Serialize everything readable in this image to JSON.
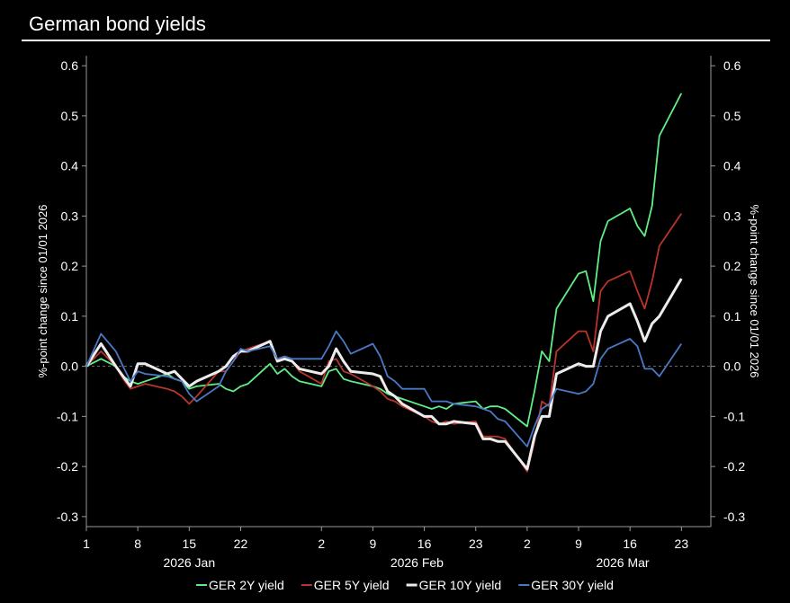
{
  "title": "German bond yields",
  "chart_data": {
    "type": "line",
    "ylabel_left": "%-point change since 01/01 2026",
    "ylabel_right": "%-point change since 01/01 2026",
    "ylim": [
      -0.32,
      0.62
    ],
    "yticks": [
      -0.3,
      -0.2,
      -0.1,
      0.0,
      0.1,
      0.2,
      0.3,
      0.4,
      0.5,
      0.6
    ],
    "ytick_labels": [
      "-0.3",
      "-0.2",
      "-0.1",
      "0.0",
      "0.1",
      "0.2",
      "0.3",
      "0.4",
      "0.5",
      "0.6"
    ],
    "xlim": [
      "2026-01-01",
      "2026-03-27"
    ],
    "xticks": [
      "2026-01-01",
      "2026-01-08",
      "2026-01-15",
      "2026-01-22",
      "2026-02-02",
      "2026-02-09",
      "2026-02-16",
      "2026-02-23",
      "2026-03-02",
      "2026-03-09",
      "2026-03-16",
      "2026-03-23"
    ],
    "xtick_labels": [
      "1",
      "8",
      "15",
      "22",
      "2",
      "9",
      "16",
      "23",
      "2",
      "9",
      "16",
      "23"
    ],
    "month_labels": [
      {
        "label": "2026 Jan",
        "date": "2026-01-15"
      },
      {
        "label": "2026 Feb",
        "date": "2026-02-15"
      },
      {
        "label": "2026 Mar",
        "date": "2026-03-15"
      }
    ],
    "zero_line": true,
    "grid": false,
    "legend_position": "bottom",
    "x": [
      "2026-01-01",
      "2026-01-03",
      "2026-01-05",
      "2026-01-06",
      "2026-01-07",
      "2026-01-08",
      "2026-01-09",
      "2026-01-12",
      "2026-01-13",
      "2026-01-14",
      "2026-01-15",
      "2026-01-16",
      "2026-01-19",
      "2026-01-20",
      "2026-01-21",
      "2026-01-22",
      "2026-01-23",
      "2026-01-26",
      "2026-01-27",
      "2026-01-28",
      "2026-01-29",
      "2026-01-30",
      "2026-02-02",
      "2026-02-03",
      "2026-02-04",
      "2026-02-05",
      "2026-02-06",
      "2026-02-09",
      "2026-02-10",
      "2026-02-11",
      "2026-02-12",
      "2026-02-13",
      "2026-02-16",
      "2026-02-17",
      "2026-02-18",
      "2026-02-19",
      "2026-02-20",
      "2026-02-23",
      "2026-02-24",
      "2026-02-25",
      "2026-02-26",
      "2026-02-27",
      "2026-03-02",
      "2026-03-03",
      "2026-03-04",
      "2026-03-05",
      "2026-03-06",
      "2026-03-09",
      "2026-03-10",
      "2026-03-11",
      "2026-03-12",
      "2026-03-13",
      "2026-03-16",
      "2026-03-17",
      "2026-03-18",
      "2026-03-19",
      "2026-03-20",
      "2026-03-23"
    ],
    "series": [
      {
        "name": "GER 2Y yield",
        "color": "#5fef84",
        "values": [
          0.0,
          0.015,
          0.0,
          -0.02,
          -0.03,
          -0.035,
          -0.03,
          -0.015,
          -0.025,
          -0.03,
          -0.045,
          -0.04,
          -0.035,
          -0.045,
          -0.05,
          -0.04,
          -0.035,
          0.005,
          -0.015,
          -0.005,
          -0.02,
          -0.03,
          -0.04,
          -0.01,
          -0.005,
          -0.025,
          -0.03,
          -0.04,
          -0.045,
          -0.055,
          -0.06,
          -0.065,
          -0.08,
          -0.085,
          -0.08,
          -0.085,
          -0.075,
          -0.07,
          -0.085,
          -0.08,
          -0.08,
          -0.085,
          -0.12,
          -0.05,
          0.03,
          0.01,
          0.115,
          0.185,
          0.19,
          0.13,
          0.25,
          0.29,
          0.315,
          0.28,
          0.26,
          0.32,
          0.46,
          0.545
        ]
      },
      {
        "name": "GER 5Y yield",
        "color": "#b9342a",
        "values": [
          0.0,
          0.03,
          0.0,
          -0.025,
          -0.045,
          -0.04,
          -0.035,
          -0.045,
          -0.05,
          -0.06,
          -0.075,
          -0.06,
          -0.01,
          -0.01,
          0.01,
          0.03,
          0.035,
          0.05,
          0.015,
          0.015,
          0.01,
          -0.01,
          -0.035,
          0.01,
          0.015,
          -0.01,
          -0.015,
          -0.04,
          -0.05,
          -0.065,
          -0.07,
          -0.08,
          -0.1,
          -0.11,
          -0.115,
          -0.11,
          -0.115,
          -0.11,
          -0.14,
          -0.14,
          -0.14,
          -0.145,
          -0.21,
          -0.15,
          -0.07,
          -0.08,
          0.03,
          0.07,
          0.07,
          0.03,
          0.15,
          0.17,
          0.19,
          0.15,
          0.115,
          0.17,
          0.24,
          0.305
        ]
      },
      {
        "name": "GER 10Y yield",
        "color": "#ececec",
        "values": [
          0.0,
          0.045,
          0.0,
          -0.02,
          -0.04,
          0.005,
          0.005,
          -0.015,
          -0.01,
          -0.025,
          -0.04,
          -0.03,
          -0.01,
          0.0,
          0.02,
          0.03,
          0.03,
          0.05,
          0.01,
          0.015,
          0.01,
          -0.005,
          -0.015,
          0.0,
          0.035,
          0.01,
          -0.01,
          -0.015,
          -0.02,
          -0.05,
          -0.06,
          -0.075,
          -0.1,
          -0.1,
          -0.115,
          -0.115,
          -0.11,
          -0.115,
          -0.145,
          -0.145,
          -0.15,
          -0.15,
          -0.205,
          -0.14,
          -0.1,
          -0.1,
          -0.015,
          0.005,
          0.0,
          0.0,
          0.07,
          0.1,
          0.125,
          0.09,
          0.05,
          0.085,
          0.1,
          0.175
        ]
      },
      {
        "name": "GER 30Y yield",
        "color": "#4b78c4",
        "values": [
          0.0,
          0.065,
          0.03,
          0.0,
          -0.03,
          -0.01,
          -0.015,
          -0.02,
          -0.025,
          -0.03,
          -0.055,
          -0.07,
          -0.04,
          -0.01,
          0.01,
          0.035,
          0.03,
          0.04,
          0.015,
          0.02,
          0.015,
          0.015,
          0.015,
          0.04,
          0.07,
          0.05,
          0.025,
          0.045,
          0.02,
          -0.02,
          -0.03,
          -0.045,
          -0.045,
          -0.07,
          -0.07,
          -0.07,
          -0.075,
          -0.08,
          -0.085,
          -0.09,
          -0.105,
          -0.11,
          -0.16,
          -0.12,
          -0.085,
          -0.075,
          -0.045,
          -0.055,
          -0.05,
          -0.035,
          0.015,
          0.035,
          0.055,
          0.04,
          -0.005,
          -0.005,
          -0.02,
          0.045
        ]
      }
    ]
  }
}
